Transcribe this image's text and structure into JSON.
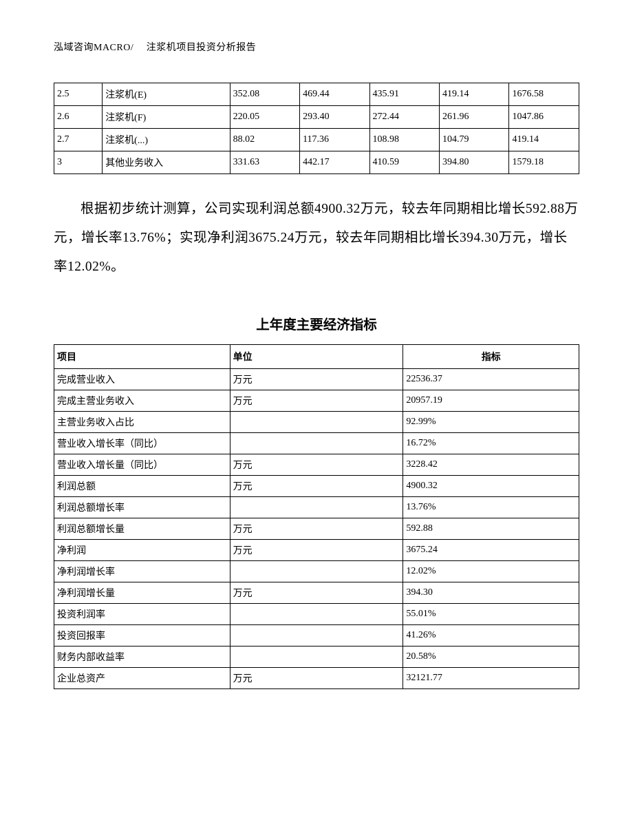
{
  "header": "泓域咨询MACRO/　 注浆机项目投资分析报告",
  "table1": {
    "rows": [
      {
        "c1": "2.5",
        "c2": "注浆机(E)",
        "c3": "352.08",
        "c4": "469.44",
        "c5": "435.91",
        "c6": "419.14",
        "c7": "1676.58"
      },
      {
        "c1": "2.6",
        "c2": "注浆机(F)",
        "c3": "220.05",
        "c4": "293.40",
        "c5": "272.44",
        "c6": "261.96",
        "c7": "1047.86"
      },
      {
        "c1": "2.7",
        "c2": "注浆机(...)",
        "c3": "88.02",
        "c4": "117.36",
        "c5": "108.98",
        "c6": "104.79",
        "c7": "419.14"
      },
      {
        "c1": "3",
        "c2": "其他业务收入",
        "c3": "331.63",
        "c4": "442.17",
        "c5": "410.59",
        "c6": "394.80",
        "c7": "1579.18"
      }
    ]
  },
  "body_text": "根据初步统计测算，公司实现利润总额4900.32万元，较去年同期相比增长592.88万元，增长率13.76%；实现净利润3675.24万元，较去年同期相比增长394.30万元，增长率12.02%。",
  "section_title": "上年度主要经济指标",
  "table2": {
    "headers": {
      "h1": "项目",
      "h2": "单位",
      "h3": "指标"
    },
    "rows": [
      {
        "c1": "完成营业收入",
        "c2": "万元",
        "c3": "22536.37"
      },
      {
        "c1": "完成主营业务收入",
        "c2": "万元",
        "c3": "20957.19"
      },
      {
        "c1": "主营业务收入占比",
        "c2": "",
        "c3": "92.99%"
      },
      {
        "c1": "营业收入增长率（同比）",
        "c2": "",
        "c3": "16.72%"
      },
      {
        "c1": "营业收入增长量（同比）",
        "c2": "万元",
        "c3": "3228.42"
      },
      {
        "c1": "利润总额",
        "c2": "万元",
        "c3": "4900.32"
      },
      {
        "c1": "利润总额增长率",
        "c2": "",
        "c3": "13.76%"
      },
      {
        "c1": "利润总额增长量",
        "c2": "万元",
        "c3": "592.88"
      },
      {
        "c1": "净利润",
        "c2": "万元",
        "c3": "3675.24"
      },
      {
        "c1": "净利润增长率",
        "c2": "",
        "c3": "12.02%"
      },
      {
        "c1": "净利润增长量",
        "c2": "万元",
        "c3": "394.30"
      },
      {
        "c1": "投资利润率",
        "c2": "",
        "c3": "55.01%"
      },
      {
        "c1": "投资回报率",
        "c2": "",
        "c3": "41.26%"
      },
      {
        "c1": "财务内部收益率",
        "c2": "",
        "c3": "20.58%"
      },
      {
        "c1": "企业总资产",
        "c2": "万元",
        "c3": "32121.77"
      }
    ]
  }
}
